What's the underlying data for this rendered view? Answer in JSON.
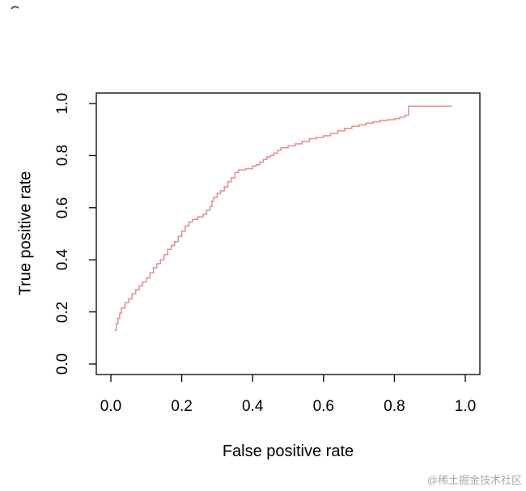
{
  "watermark": "@稀土掘金技术社区",
  "chart_data": {
    "type": "line",
    "subtype": "roc-step-curve",
    "title": "",
    "xlabel": "False positive rate",
    "ylabel": "True positive rate",
    "xlim": [
      0,
      1
    ],
    "ylim": [
      0,
      1
    ],
    "x_ticks": [
      "0.0",
      "0.2",
      "0.4",
      "0.6",
      "0.8",
      "1.0"
    ],
    "y_ticks": [
      "0.0",
      "0.2",
      "0.4",
      "0.6",
      "0.8",
      "1.0"
    ],
    "grid": false,
    "legend": "none",
    "line_color": "#e38e8a",
    "axis_color": "#000000",
    "series": [
      {
        "name": "ROC curve",
        "points": [
          [
            0.01,
            0.13
          ],
          [
            0.015,
            0.155
          ],
          [
            0.02,
            0.175
          ],
          [
            0.025,
            0.195
          ],
          [
            0.03,
            0.215
          ],
          [
            0.04,
            0.235
          ],
          [
            0.05,
            0.25
          ],
          [
            0.06,
            0.27
          ],
          [
            0.07,
            0.285
          ],
          [
            0.08,
            0.3
          ],
          [
            0.09,
            0.315
          ],
          [
            0.1,
            0.33
          ],
          [
            0.11,
            0.35
          ],
          [
            0.12,
            0.37
          ],
          [
            0.13,
            0.385
          ],
          [
            0.14,
            0.4
          ],
          [
            0.15,
            0.42
          ],
          [
            0.16,
            0.44
          ],
          [
            0.17,
            0.455
          ],
          [
            0.18,
            0.47
          ],
          [
            0.19,
            0.49
          ],
          [
            0.2,
            0.51
          ],
          [
            0.21,
            0.53
          ],
          [
            0.22,
            0.545
          ],
          [
            0.23,
            0.555
          ],
          [
            0.245,
            0.565
          ],
          [
            0.26,
            0.575
          ],
          [
            0.27,
            0.59
          ],
          [
            0.28,
            0.605
          ],
          [
            0.285,
            0.625
          ],
          [
            0.29,
            0.64
          ],
          [
            0.3,
            0.655
          ],
          [
            0.31,
            0.665
          ],
          [
            0.32,
            0.68
          ],
          [
            0.33,
            0.7
          ],
          [
            0.34,
            0.715
          ],
          [
            0.35,
            0.735
          ],
          [
            0.36,
            0.745
          ],
          [
            0.38,
            0.75
          ],
          [
            0.4,
            0.76
          ],
          [
            0.41,
            0.765
          ],
          [
            0.42,
            0.775
          ],
          [
            0.43,
            0.785
          ],
          [
            0.44,
            0.795
          ],
          [
            0.45,
            0.8
          ],
          [
            0.46,
            0.81
          ],
          [
            0.47,
            0.82
          ],
          [
            0.48,
            0.83
          ],
          [
            0.5,
            0.838
          ],
          [
            0.52,
            0.845
          ],
          [
            0.54,
            0.855
          ],
          [
            0.56,
            0.865
          ],
          [
            0.58,
            0.87
          ],
          [
            0.6,
            0.876
          ],
          [
            0.62,
            0.885
          ],
          [
            0.64,
            0.895
          ],
          [
            0.66,
            0.905
          ],
          [
            0.68,
            0.912
          ],
          [
            0.7,
            0.918
          ],
          [
            0.72,
            0.925
          ],
          [
            0.74,
            0.93
          ],
          [
            0.76,
            0.935
          ],
          [
            0.78,
            0.938
          ],
          [
            0.8,
            0.942
          ],
          [
            0.815,
            0.948
          ],
          [
            0.83,
            0.955
          ],
          [
            0.84,
            0.99
          ],
          [
            0.9,
            0.99
          ],
          [
            0.96,
            0.992
          ]
        ]
      }
    ]
  }
}
